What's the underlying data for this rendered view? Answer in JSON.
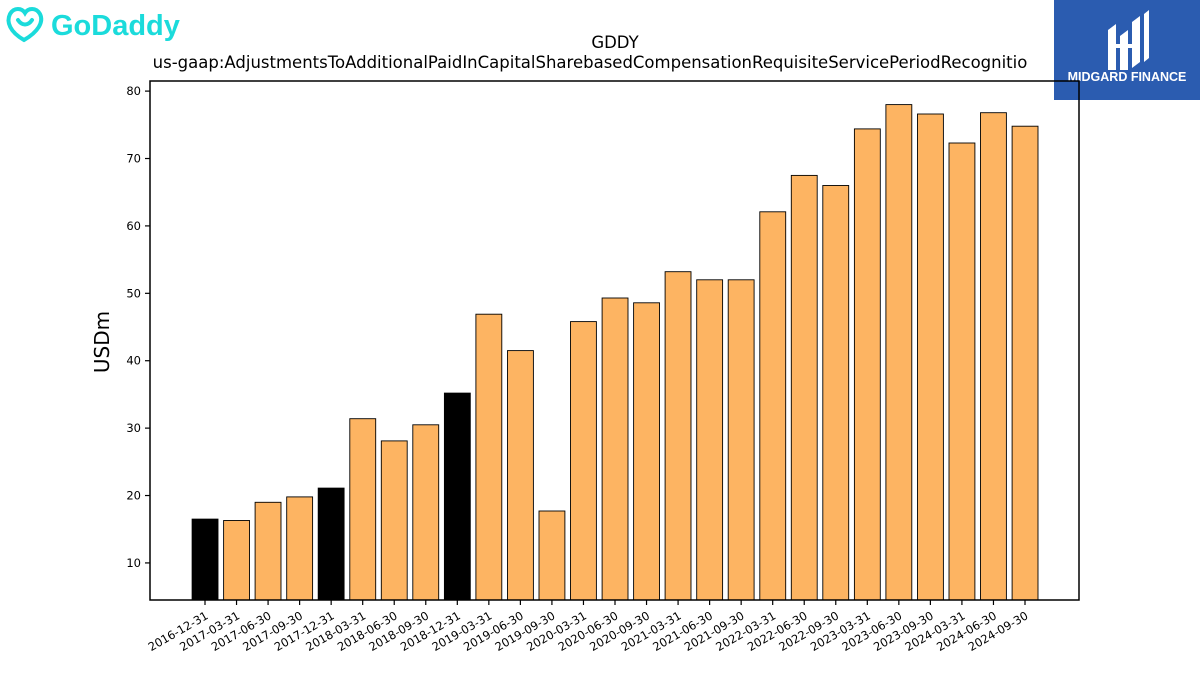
{
  "branding": {
    "company_logo_text": "GoDaddy",
    "company_logo_color": "#1bdbdb",
    "partner_logo_text": "MIDGARD FINANCE",
    "partner_logo_bg": "#2b5cb0"
  },
  "chart_data": {
    "type": "bar",
    "title": "GDDY",
    "subtitle": "us-gaap:AdjustmentsToAdditionalPaidInCapitalSharebasedCompensationRequisiteServicePeriodRecognitio",
    "xlabel": "",
    "ylabel": "USDm",
    "ylim": [
      4.5,
      81.5
    ],
    "yticks": [
      10,
      20,
      30,
      40,
      50,
      60,
      70,
      80
    ],
    "grid": false,
    "bar_color": "#fdb462",
    "highlight_color": "#000000",
    "categories": [
      "2016-12-31",
      "2017-03-31",
      "2017-06-30",
      "2017-09-30",
      "2017-12-31",
      "2018-03-31",
      "2018-06-30",
      "2018-09-30",
      "2018-12-31",
      "2019-03-31",
      "2019-06-30",
      "2019-09-30",
      "2020-03-31",
      "2020-06-30",
      "2020-09-30",
      "2021-03-31",
      "2021-06-30",
      "2021-09-30",
      "2022-03-31",
      "2022-06-30",
      "2022-09-30",
      "2023-03-31",
      "2023-06-30",
      "2023-09-30",
      "2024-03-31",
      "2024-06-30",
      "2024-09-30"
    ],
    "values": [
      16.5,
      16.3,
      19.0,
      19.8,
      21.1,
      31.4,
      28.1,
      30.5,
      35.2,
      46.9,
      41.5,
      17.7,
      45.8,
      49.3,
      48.6,
      53.2,
      52.0,
      52.0,
      62.1,
      67.5,
      66.0,
      74.4,
      78.0,
      76.6,
      72.3,
      76.8,
      74.8
    ],
    "highlighted": [
      true,
      false,
      false,
      false,
      true,
      false,
      false,
      false,
      true,
      false,
      false,
      false,
      false,
      false,
      false,
      false,
      false,
      false,
      false,
      false,
      false,
      false,
      false,
      false,
      false,
      false,
      false
    ]
  }
}
